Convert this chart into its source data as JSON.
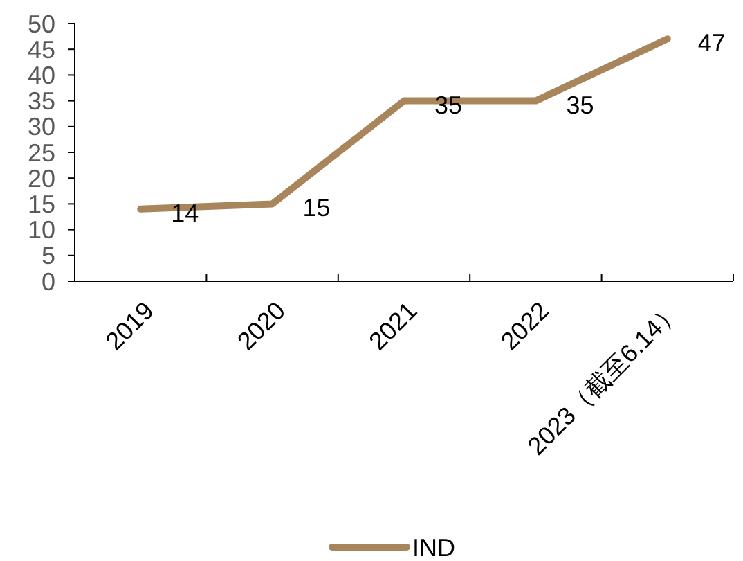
{
  "chart_data": {
    "type": "line",
    "categories": [
      "2019",
      "2020",
      "2021",
      "2022",
      "2023（截至6.14）"
    ],
    "series": [
      {
        "name": "IND",
        "color": "#a8855a",
        "values": [
          14,
          15,
          35,
          35,
          47
        ]
      }
    ],
    "ylim": [
      0,
      50
    ],
    "yticks": [
      0,
      5,
      10,
      15,
      20,
      25,
      30,
      35,
      40,
      45,
      50
    ],
    "data_labels": true,
    "legend": "bottom",
    "grid": false,
    "marker": "none"
  }
}
